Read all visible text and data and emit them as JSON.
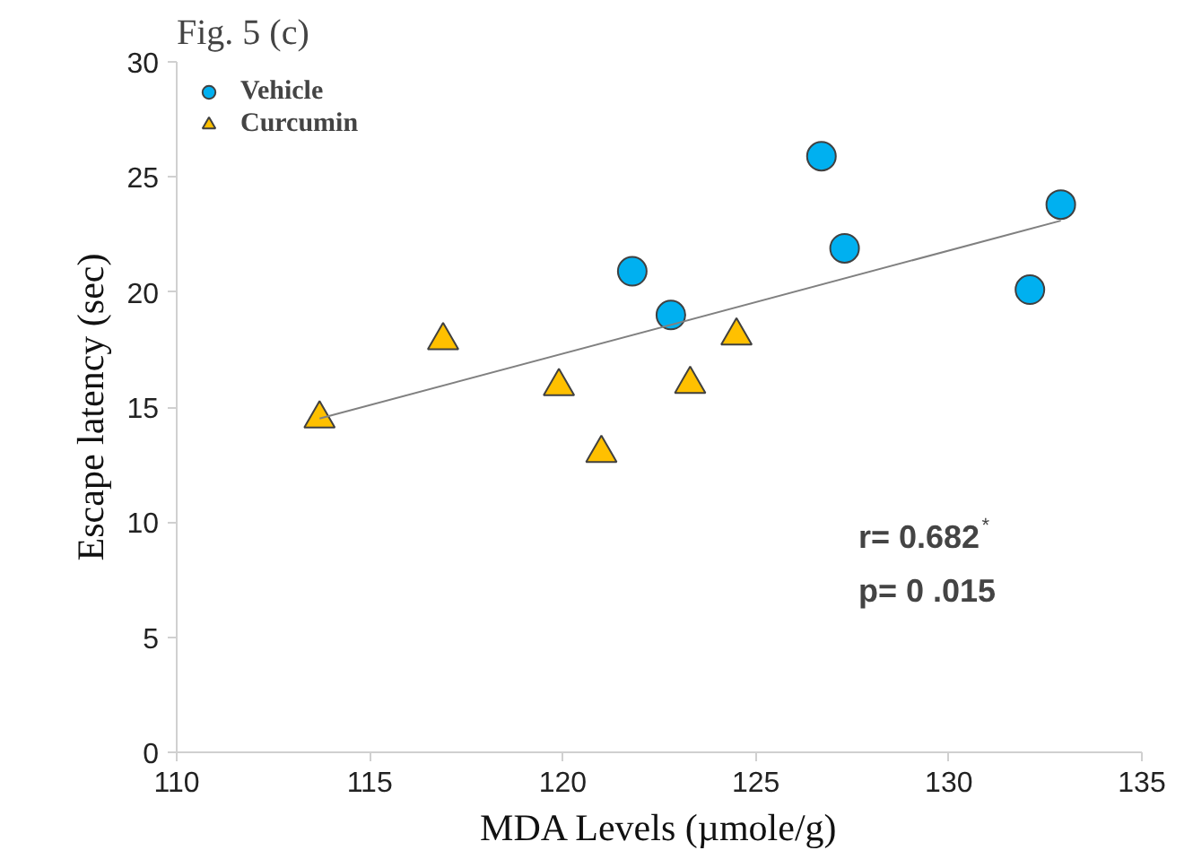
{
  "chart_data": {
    "type": "scatter",
    "title": "Fig. 5 (c)",
    "xlabel": "MDA Levels (µmole/g)",
    "ylabel": "Escape latency (sec)",
    "xlim": [
      110,
      135
    ],
    "xticks": [
      110,
      115,
      120,
      125,
      130,
      135
    ],
    "ylim": [
      0,
      30
    ],
    "yticks": [
      0,
      5,
      10,
      15,
      20,
      25,
      30
    ],
    "grid": false,
    "legend": "top left",
    "series": [
      {
        "name": "Vehicle",
        "marker": "circle",
        "color": "#00b0f0",
        "x": [
          121.8,
          122.8,
          126.7,
          127.3,
          132.1,
          132.9
        ],
        "values": [
          20.9,
          19.0,
          25.9,
          21.9,
          20.1,
          23.8
        ]
      },
      {
        "name": "Curcumin",
        "marker": "triangle",
        "color": "#ffc000",
        "x": [
          113.7,
          116.9,
          119.9,
          121.0,
          123.3,
          124.5
        ],
        "values": [
          14.5,
          17.9,
          15.9,
          13.0,
          16.0,
          18.1
        ]
      },
      {
        "type": "line",
        "color": "#808080",
        "line_style": "solid",
        "x": [
          113.7,
          132.9
        ],
        "values": [
          14.5,
          23.1
        ]
      }
    ],
    "annotations": [
      "r= 0.682$^{*}$",
      "p= 0 .015"
    ]
  }
}
